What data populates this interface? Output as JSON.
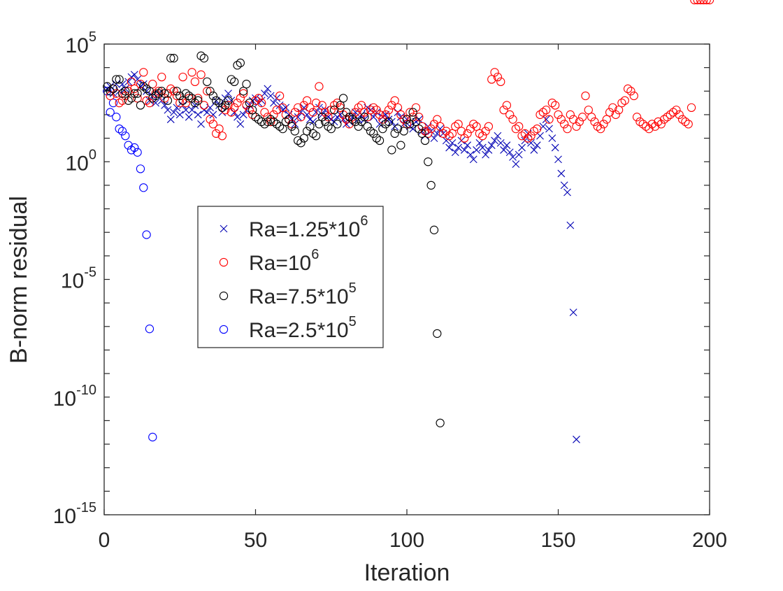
{
  "chart_data": {
    "type": "scatter",
    "title": "",
    "xlabel": "Iteration",
    "ylabel": "B-norm residual",
    "xlim": [
      0,
      200
    ],
    "ylim_log10": [
      -15,
      5
    ],
    "yscale": "log",
    "grid": false,
    "legend_position": "center-left",
    "x_ticks": [
      {
        "value": 0,
        "label": "0"
      },
      {
        "value": 50,
        "label": "50"
      },
      {
        "value": 100,
        "label": "100"
      },
      {
        "value": 150,
        "label": "150"
      },
      {
        "value": 200,
        "label": "200"
      }
    ],
    "y_ticks": [
      {
        "log10": 5,
        "base": "10",
        "exp": "5"
      },
      {
        "log10": 0,
        "base": "10",
        "exp": "0"
      },
      {
        "log10": -5,
        "base": "10",
        "exp": "-5"
      },
      {
        "log10": -10,
        "base": "10",
        "exp": "-10"
      },
      {
        "log10": -15,
        "base": "10",
        "exp": "-15"
      }
    ],
    "series": [
      {
        "name": "Ra=2.5*10^5",
        "legend_base": "Ra=2.5*10",
        "legend_exp": "5",
        "marker": "circle",
        "color": "#0000ff",
        "x": [
          1,
          2,
          3,
          4,
          5,
          6,
          7,
          8,
          9,
          10,
          11,
          12,
          13,
          14,
          15,
          16
        ],
        "log10y": [
          3.0,
          2.1,
          2.5,
          1.9,
          1.4,
          1.3,
          1.1,
          0.7,
          0.5,
          0.6,
          0.4,
          -0.3,
          -1.1,
          -3.1,
          -7.1,
          -11.7
        ]
      },
      {
        "name": "Ra=1.25*10^6",
        "legend_base": "Ra=1.25*10",
        "legend_exp": "6",
        "marker": "x",
        "color": "#0000b4",
        "x": [
          1,
          2,
          3,
          4,
          5,
          6,
          7,
          8,
          9,
          10,
          11,
          12,
          13,
          14,
          15,
          16,
          17,
          18,
          19,
          20,
          21,
          22,
          23,
          24,
          25,
          26,
          27,
          28,
          29,
          30,
          31,
          32,
          33,
          34,
          35,
          36,
          37,
          38,
          39,
          40,
          41,
          42,
          43,
          44,
          45,
          46,
          47,
          48,
          49,
          50,
          51,
          52,
          53,
          54,
          55,
          56,
          57,
          58,
          59,
          60,
          61,
          62,
          63,
          64,
          65,
          66,
          67,
          68,
          69,
          70,
          71,
          72,
          73,
          74,
          75,
          76,
          77,
          78,
          79,
          80,
          81,
          82,
          83,
          84,
          85,
          86,
          87,
          88,
          89,
          90,
          91,
          92,
          93,
          94,
          95,
          96,
          97,
          98,
          99,
          100,
          101,
          102,
          103,
          104,
          105,
          106,
          107,
          108,
          109,
          110,
          111,
          112,
          113,
          114,
          115,
          116,
          117,
          118,
          119,
          120,
          121,
          122,
          123,
          124,
          125,
          126,
          127,
          128,
          129,
          130,
          131,
          132,
          133,
          134,
          135,
          136,
          137,
          138,
          139,
          140,
          141,
          142,
          143,
          144,
          145,
          146,
          147,
          148,
          149,
          150,
          151,
          152,
          153,
          154,
          155,
          156
        ],
        "log10y": [
          3.1,
          3.2,
          2.9,
          3.3,
          3.0,
          3.3,
          3.1,
          3.4,
          3.6,
          3.7,
          3.5,
          3.2,
          3.3,
          3.0,
          2.6,
          2.8,
          2.5,
          2.9,
          2.6,
          2.4,
          2.2,
          1.8,
          2.1,
          2.3,
          2.0,
          2.4,
          2.2,
          1.9,
          2.2,
          2.4,
          2.0,
          1.6,
          2.2,
          2.1,
          2.3,
          2.0,
          2.6,
          2.4,
          2.1,
          2.7,
          2.9,
          2.6,
          2.1,
          1.9,
          1.6,
          2.0,
          2.2,
          2.4,
          2.6,
          2.7,
          2.5,
          2.6,
          2.9,
          3.1,
          2.8,
          2.5,
          2.7,
          2.4,
          2.2,
          2.3,
          2.0,
          1.8,
          1.6,
          1.9,
          2.1,
          2.3,
          2.0,
          1.8,
          1.7,
          2.1,
          2.3,
          2.0,
          2.2,
          1.9,
          1.8,
          1.7,
          1.9,
          2.0,
          1.8,
          1.6,
          1.7,
          1.9,
          2.1,
          1.8,
          2.0,
          1.8,
          2.3,
          2.2,
          1.9,
          2.1,
          1.6,
          1.9,
          2.0,
          1.8,
          1.7,
          1.5,
          2.1,
          1.9,
          1.6,
          1.8,
          1.5,
          1.4,
          1.7,
          1.8,
          1.3,
          1.1,
          1.5,
          1.3,
          1.0,
          1.2,
          1.4,
          1.2,
          0.9,
          0.6,
          0.8,
          0.4,
          0.6,
          0.9,
          0.5,
          0.7,
          0.3,
          0.1,
          0.5,
          0.8,
          0.6,
          0.3,
          0.5,
          0.7,
          0.9,
          1.1,
          0.8,
          0.5,
          0.7,
          0.4,
          0.2,
          -0.1,
          0.3,
          0.6,
          0.9,
          1.2,
          0.8,
          0.5,
          0.7,
          1.1,
          1.5,
          1.8,
          1.4,
          1.0,
          0.6,
          0.1,
          -0.5,
          -1.0,
          -1.3,
          -2.7,
          -6.4,
          -11.8
        ]
      },
      {
        "name": "Ra=10^6",
        "legend_base": "Ra=10",
        "legend_exp": "6",
        "marker": "circle",
        "color": "#ff0000",
        "x": [
          2,
          3,
          4,
          5,
          6,
          7,
          8,
          9,
          10,
          11,
          12,
          13,
          14,
          15,
          16,
          17,
          18,
          19,
          20,
          21,
          22,
          23,
          24,
          25,
          26,
          27,
          28,
          29,
          30,
          31,
          32,
          33,
          34,
          35,
          36,
          37,
          38,
          39,
          40,
          41,
          42,
          43,
          44,
          45,
          46,
          47,
          48,
          49,
          50,
          51,
          52,
          53,
          54,
          55,
          56,
          57,
          58,
          59,
          60,
          61,
          62,
          63,
          64,
          65,
          66,
          67,
          68,
          69,
          70,
          71,
          72,
          73,
          74,
          75,
          76,
          77,
          78,
          79,
          80,
          81,
          82,
          83,
          84,
          85,
          86,
          87,
          88,
          89,
          90,
          91,
          92,
          93,
          94,
          95,
          96,
          97,
          98,
          99,
          100,
          101,
          102,
          103,
          104,
          105,
          106,
          107,
          108,
          109,
          110,
          111,
          112,
          113,
          114,
          115,
          116,
          117,
          118,
          119,
          120,
          121,
          122,
          123,
          124,
          125,
          126,
          127,
          128,
          129,
          130,
          131,
          132,
          133,
          134,
          135,
          136,
          137,
          138,
          139,
          140,
          141,
          142,
          143,
          144,
          145,
          146,
          147,
          148,
          149,
          150,
          151,
          152,
          153,
          154,
          155,
          156,
          157,
          158,
          159,
          160,
          161,
          162,
          163,
          164,
          165,
          166,
          167,
          168,
          169,
          170,
          171,
          172,
          173,
          174,
          175,
          176,
          177,
          178,
          179,
          180,
          181,
          182,
          183,
          184,
          185,
          186,
          187,
          188,
          189,
          190,
          191,
          192,
          193,
          194,
          195,
          196,
          197,
          198,
          199,
          200
        ],
        "log10y": [
          2.8,
          3.1,
          2.9,
          2.5,
          2.6,
          2.8,
          3.0,
          3.4,
          3.1,
          2.7,
          3.3,
          3.8,
          2.6,
          2.5,
          3.3,
          2.9,
          3.0,
          3.6,
          2.7,
          2.9,
          3.1,
          3.0,
          2.8,
          2.5,
          3.6,
          2.5,
          2.7,
          3.8,
          3.4,
          2.7,
          3.7,
          2.4,
          3.0,
          1.8,
          1.6,
          1.2,
          1.4,
          1.1,
          2.2,
          2.4,
          2.1,
          2.3,
          2.5,
          2.7,
          2.9,
          2.4,
          2.2,
          2.0,
          2.6,
          2.7,
          2.5,
          2.1,
          1.9,
          1.7,
          2.0,
          2.2,
          2.8,
          2.3,
          2.0,
          1.8,
          1.6,
          2.1,
          2.3,
          1.9,
          2.4,
          2.6,
          2.3,
          2.1,
          2.5,
          3.2,
          2.4,
          2.1,
          1.9,
          2.2,
          2.4,
          2.5,
          2.3,
          2.0,
          1.8,
          1.6,
          1.9,
          2.1,
          2.3,
          2.4,
          2.1,
          1.9,
          2.2,
          2.3,
          2.2,
          2.0,
          1.8,
          2.0,
          2.2,
          2.4,
          2.6,
          2.3,
          2.0,
          1.8,
          1.6,
          2.1,
          1.9,
          2.3,
          1.9,
          1.5,
          1.3,
          1.2,
          1.4,
          1.6,
          1.8,
          1.5,
          1.2,
          1.3,
          1.1,
          1.2,
          1.5,
          1.6,
          1.3,
          1.0,
          1.2,
          1.4,
          1.6,
          1.5,
          1.2,
          1.1,
          1.3,
          1.5,
          3.5,
          3.8,
          3.6,
          3.4,
          2.2,
          2.4,
          2.0,
          1.8,
          1.4,
          1.5,
          1.1,
          1.2,
          1.0,
          1.1,
          1.3,
          1.4,
          2.0,
          2.1,
          2.2,
          1.8,
          2.5,
          2.4,
          2.0,
          1.8,
          1.6,
          1.4,
          2.0,
          1.8,
          1.5,
          1.7,
          1.9,
          2.8,
          2.2,
          1.9,
          1.7,
          1.5,
          1.4,
          1.6,
          1.8,
          2.1,
          2.3,
          2.0,
          2.2,
          2.5,
          2.6,
          3.1,
          3.0,
          2.8,
          1.9,
          1.7,
          1.6,
          1.5,
          1.4,
          1.6,
          1.5,
          1.7,
          1.6,
          1.8,
          1.9,
          2.0,
          2.1,
          2.2,
          2.0,
          1.8,
          1.7,
          1.6,
          2.3
        ]
      },
      {
        "name": "Ra=7.5*10^5",
        "legend_base": "Ra=7.5*10",
        "legend_exp": "5",
        "marker": "circle",
        "color": "#000000",
        "x": [
          1,
          2,
          3,
          4,
          5,
          6,
          7,
          8,
          9,
          10,
          11,
          12,
          13,
          14,
          15,
          16,
          17,
          18,
          19,
          20,
          21,
          22,
          23,
          24,
          25,
          26,
          27,
          28,
          29,
          30,
          31,
          32,
          33,
          34,
          35,
          36,
          37,
          38,
          39,
          40,
          41,
          42,
          43,
          44,
          45,
          46,
          47,
          48,
          49,
          50,
          51,
          52,
          53,
          54,
          55,
          56,
          57,
          58,
          59,
          60,
          61,
          62,
          63,
          64,
          65,
          66,
          67,
          68,
          69,
          70,
          71,
          72,
          73,
          74,
          75,
          76,
          77,
          78,
          79,
          80,
          81,
          82,
          83,
          84,
          85,
          86,
          87,
          88,
          89,
          90,
          91,
          92,
          93,
          94,
          95,
          96,
          97,
          98,
          99,
          100,
          101,
          102,
          103,
          104,
          105,
          106,
          107,
          108,
          109,
          110,
          111
        ],
        "log10y": [
          3.2,
          3.0,
          3.1,
          3.5,
          3.5,
          2.9,
          3.0,
          2.6,
          2.7,
          2.9,
          2.9,
          2.4,
          3.2,
          3.1,
          3.0,
          2.7,
          2.8,
          2.9,
          3.0,
          2.9,
          2.6,
          4.4,
          4.4,
          3.0,
          2.8,
          2.6,
          2.9,
          2.8,
          2.7,
          2.5,
          2.6,
          4.5,
          4.4,
          3.4,
          3.0,
          2.8,
          2.6,
          2.5,
          2.3,
          2.4,
          2.6,
          3.5,
          3.4,
          4.1,
          4.2,
          3.0,
          3.3,
          2.5,
          2.2,
          1.9,
          1.8,
          1.7,
          1.6,
          1.7,
          1.8,
          1.7,
          1.6,
          1.5,
          1.4,
          1.7,
          1.8,
          1.5,
          1.3,
          0.9,
          0.8,
          1.0,
          1.3,
          1.5,
          1.2,
          1.1,
          1.6,
          1.9,
          1.7,
          1.5,
          1.4,
          2.2,
          1.6,
          2.4,
          2.7,
          2.1,
          1.9,
          1.8,
          1.7,
          1.5,
          1.7,
          1.9,
          1.5,
          1.3,
          1.2,
          1.0,
          0.9,
          1.4,
          1.6,
          1.7,
          0.5,
          1.2,
          1.4,
          0.7,
          1.3,
          1.8,
          1.6,
          2.1,
          1.7,
          1.4,
          1.2,
          0.9,
          0.0,
          -1.0,
          -2.9,
          -7.3,
          -11.1
        ]
      }
    ]
  }
}
